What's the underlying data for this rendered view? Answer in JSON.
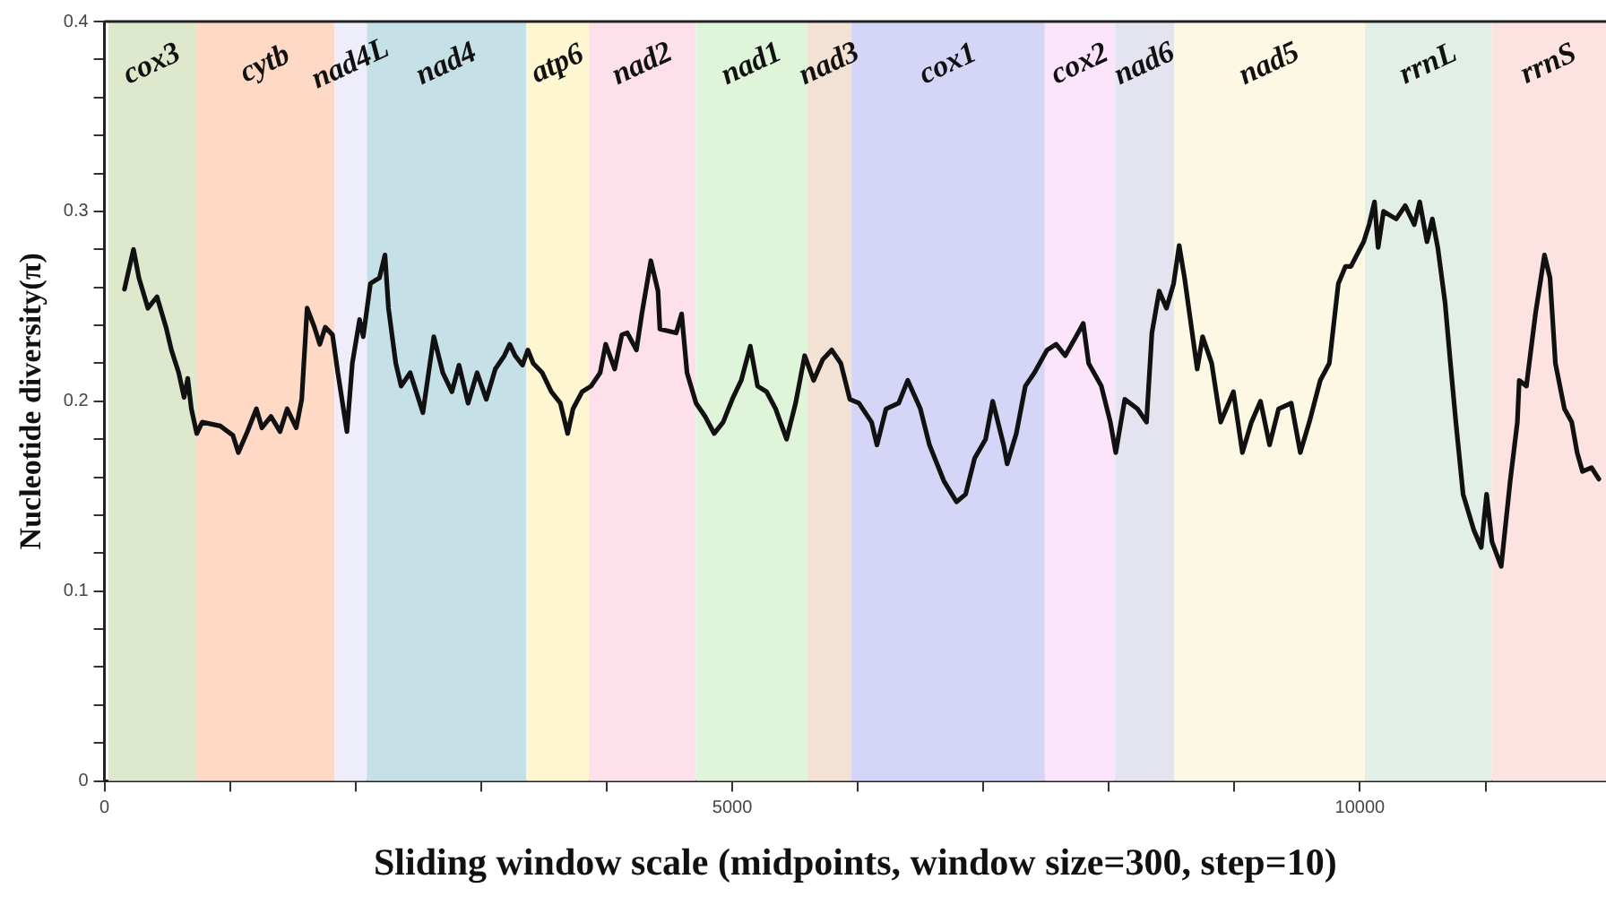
{
  "chart_data": {
    "type": "line",
    "xlabel": "Sliding window scale (midpoints, window size=300, step=10)",
    "ylabel": "Nucleotide diversity(π)",
    "xlim": [
      0,
      11960
    ],
    "ylim": [
      0,
      0.4
    ],
    "xticks": [
      0,
      {
        "value": 1000,
        "label": null
      },
      {
        "value": 2000,
        "label": null
      },
      {
        "value": 3000,
        "label": null
      },
      {
        "value": 4000,
        "label": null
      },
      5000,
      {
        "value": 6000,
        "label": null
      },
      {
        "value": 7000,
        "label": null
      },
      {
        "value": 8000,
        "label": null
      },
      {
        "value": 9000,
        "label": null
      },
      10000,
      {
        "value": 11000,
        "label": null
      }
    ],
    "yticks": [
      0,
      {
        "value": 0.02,
        "label": null
      },
      {
        "value": 0.04,
        "label": null
      },
      {
        "value": 0.06,
        "label": null
      },
      {
        "value": 0.08,
        "label": null
      },
      0.1,
      {
        "value": 0.12,
        "label": null
      },
      {
        "value": 0.14,
        "label": null
      },
      {
        "value": 0.16,
        "label": null
      },
      {
        "value": 0.18,
        "label": null
      },
      0.2,
      {
        "value": 0.22,
        "label": null
      },
      {
        "value": 0.24,
        "label": null
      },
      {
        "value": 0.26,
        "label": null
      },
      {
        "value": 0.28,
        "label": null
      },
      0.3,
      {
        "value": 0.32,
        "label": null
      },
      {
        "value": 0.34,
        "label": null
      },
      {
        "value": 0.36,
        "label": null
      },
      {
        "value": 0.38,
        "label": null
      },
      0.4
    ],
    "grid": false,
    "legend": false,
    "marker": "none",
    "line_style": "solid",
    "bands": [
      {
        "axis": "x",
        "from": 30,
        "to": 730,
        "label": "cox3",
        "color": "#dde8cc"
      },
      {
        "axis": "x",
        "from": 730,
        "to": 1830,
        "label": "cytb",
        "color": "#fdd9c6"
      },
      {
        "axis": "x",
        "from": 1830,
        "to": 2090,
        "label": "nad4L",
        "color": "#eeeefa"
      },
      {
        "axis": "x",
        "from": 2090,
        "to": 3360,
        "label": "nad4",
        "color": "#c6e0e8"
      },
      {
        "axis": "x",
        "from": 3360,
        "to": 3860,
        "label": "atp6",
        "color": "#fdf6d0"
      },
      {
        "axis": "x",
        "from": 3860,
        "to": 4710,
        "label": "nad2",
        "color": "#fde0ea"
      },
      {
        "axis": "x",
        "from": 4710,
        "to": 5600,
        "label": "nad1",
        "color": "#def5da"
      },
      {
        "axis": "x",
        "from": 5600,
        "to": 5950,
        "label": "nad3",
        "color": "#f3e2d4"
      },
      {
        "axis": "x",
        "from": 5950,
        "to": 7490,
        "label": "cox1",
        "color": "#d5d5f8"
      },
      {
        "axis": "x",
        "from": 7490,
        "to": 8050,
        "label": "cox2",
        "color": "#fce4fb"
      },
      {
        "axis": "x",
        "from": 8050,
        "to": 8520,
        "label": "nad6",
        "color": "#e4e4f0"
      },
      {
        "axis": "x",
        "from": 8520,
        "to": 10040,
        "label": "nad5",
        "color": "#fdf8e4"
      },
      {
        "axis": "x",
        "from": 10040,
        "to": 11050,
        "label": "rrnL",
        "color": "#e2efe6"
      },
      {
        "axis": "x",
        "from": 11050,
        "to": 11960,
        "label": "rrnS",
        "color": "#fde2e2"
      }
    ],
    "series": [
      {
        "color": "#111111",
        "x": [
          159,
          231,
          274,
          346,
          418,
          490,
          533,
          591,
          634,
          663,
          692,
          735,
          778,
          922,
          1023,
          1066,
          1138,
          1210,
          1254,
          1326,
          1398,
          1455,
          1527,
          1571,
          1614,
          1672,
          1715,
          1758,
          1816,
          1859,
          1931,
          1974,
          2032,
          2061,
          2118,
          2190,
          2234,
          2262,
          2320,
          2363,
          2435,
          2536,
          2623,
          2695,
          2767,
          2824,
          2896,
          2968,
          3041,
          3113,
          3185,
          3228,
          3271,
          3329,
          3372,
          3415,
          3487,
          3559,
          3631,
          3689,
          3732,
          3804,
          3876,
          3948,
          3992,
          4064,
          4121,
          4164,
          4237,
          4280,
          4352,
          4409,
          4424,
          4554,
          4597,
          4640,
          4712,
          4784,
          4856,
          4928,
          5000,
          5072,
          5144,
          5202,
          5274,
          5346,
          5433,
          5505,
          5577,
          5649,
          5721,
          5793,
          5865,
          5937,
          6009,
          6110,
          6153,
          6225,
          6326,
          6398,
          6499,
          6571,
          6686,
          6787,
          6859,
          6931,
          7018,
          7075,
          7162,
          7190,
          7263,
          7335,
          7407,
          7508,
          7580,
          7652,
          7738,
          7796,
          7839,
          7940,
          8012,
          8055,
          8127,
          8228,
          8300,
          8343,
          8401,
          8459,
          8516,
          8560,
          8603,
          8704,
          8747,
          8819,
          8891,
          8992,
          9064,
          9136,
          9208,
          9280,
          9352,
          9453,
          9525,
          9597,
          9684,
          9756,
          9828,
          9885,
          9928,
          10030,
          10073,
          10116,
          10145,
          10188,
          10289,
          10361,
          10433,
          10476,
          10534,
          10577,
          10620,
          10678,
          10721,
          10764,
          10822,
          10908,
          10966,
          11009,
          11052,
          11125,
          11197,
          11254,
          11269,
          11326,
          11398,
          11470,
          11514,
          11557,
          11629,
          11687,
          11730,
          11773,
          11845,
          11903
        ],
        "values": [
          0.259,
          0.28,
          0.265,
          0.249,
          0.255,
          0.239,
          0.227,
          0.215,
          0.202,
          0.212,
          0.196,
          0.183,
          0.189,
          0.187,
          0.182,
          0.173,
          0.184,
          0.196,
          0.186,
          0.192,
          0.184,
          0.196,
          0.186,
          0.201,
          0.249,
          0.239,
          0.23,
          0.239,
          0.235,
          0.215,
          0.184,
          0.22,
          0.243,
          0.234,
          0.262,
          0.265,
          0.277,
          0.249,
          0.22,
          0.208,
          0.215,
          0.194,
          0.234,
          0.215,
          0.205,
          0.219,
          0.199,
          0.215,
          0.201,
          0.217,
          0.224,
          0.23,
          0.224,
          0.219,
          0.227,
          0.22,
          0.215,
          0.205,
          0.199,
          0.183,
          0.196,
          0.205,
          0.208,
          0.215,
          0.23,
          0.217,
          0.235,
          0.236,
          0.227,
          0.246,
          0.274,
          0.258,
          0.238,
          0.236,
          0.246,
          0.215,
          0.199,
          0.192,
          0.183,
          0.189,
          0.201,
          0.211,
          0.229,
          0.208,
          0.205,
          0.196,
          0.18,
          0.199,
          0.224,
          0.211,
          0.222,
          0.227,
          0.22,
          0.201,
          0.199,
          0.189,
          0.177,
          0.196,
          0.199,
          0.211,
          0.196,
          0.177,
          0.158,
          0.147,
          0.151,
          0.17,
          0.18,
          0.2,
          0.177,
          0.167,
          0.183,
          0.208,
          0.215,
          0.227,
          0.23,
          0.224,
          0.234,
          0.241,
          0.22,
          0.208,
          0.189,
          0.173,
          0.201,
          0.196,
          0.189,
          0.236,
          0.258,
          0.249,
          0.262,
          0.282,
          0.265,
          0.217,
          0.234,
          0.22,
          0.189,
          0.205,
          0.173,
          0.189,
          0.2,
          0.177,
          0.196,
          0.199,
          0.173,
          0.189,
          0.211,
          0.22,
          0.262,
          0.271,
          0.271,
          0.284,
          0.293,
          0.305,
          0.281,
          0.3,
          0.296,
          0.303,
          0.293,
          0.305,
          0.284,
          0.296,
          0.281,
          0.252,
          0.22,
          0.189,
          0.151,
          0.132,
          0.123,
          0.151,
          0.126,
          0.113,
          0.158,
          0.189,
          0.211,
          0.208,
          0.246,
          0.277,
          0.265,
          0.22,
          0.196,
          0.189,
          0.173,
          0.163,
          0.165,
          0.159
        ]
      }
    ]
  }
}
